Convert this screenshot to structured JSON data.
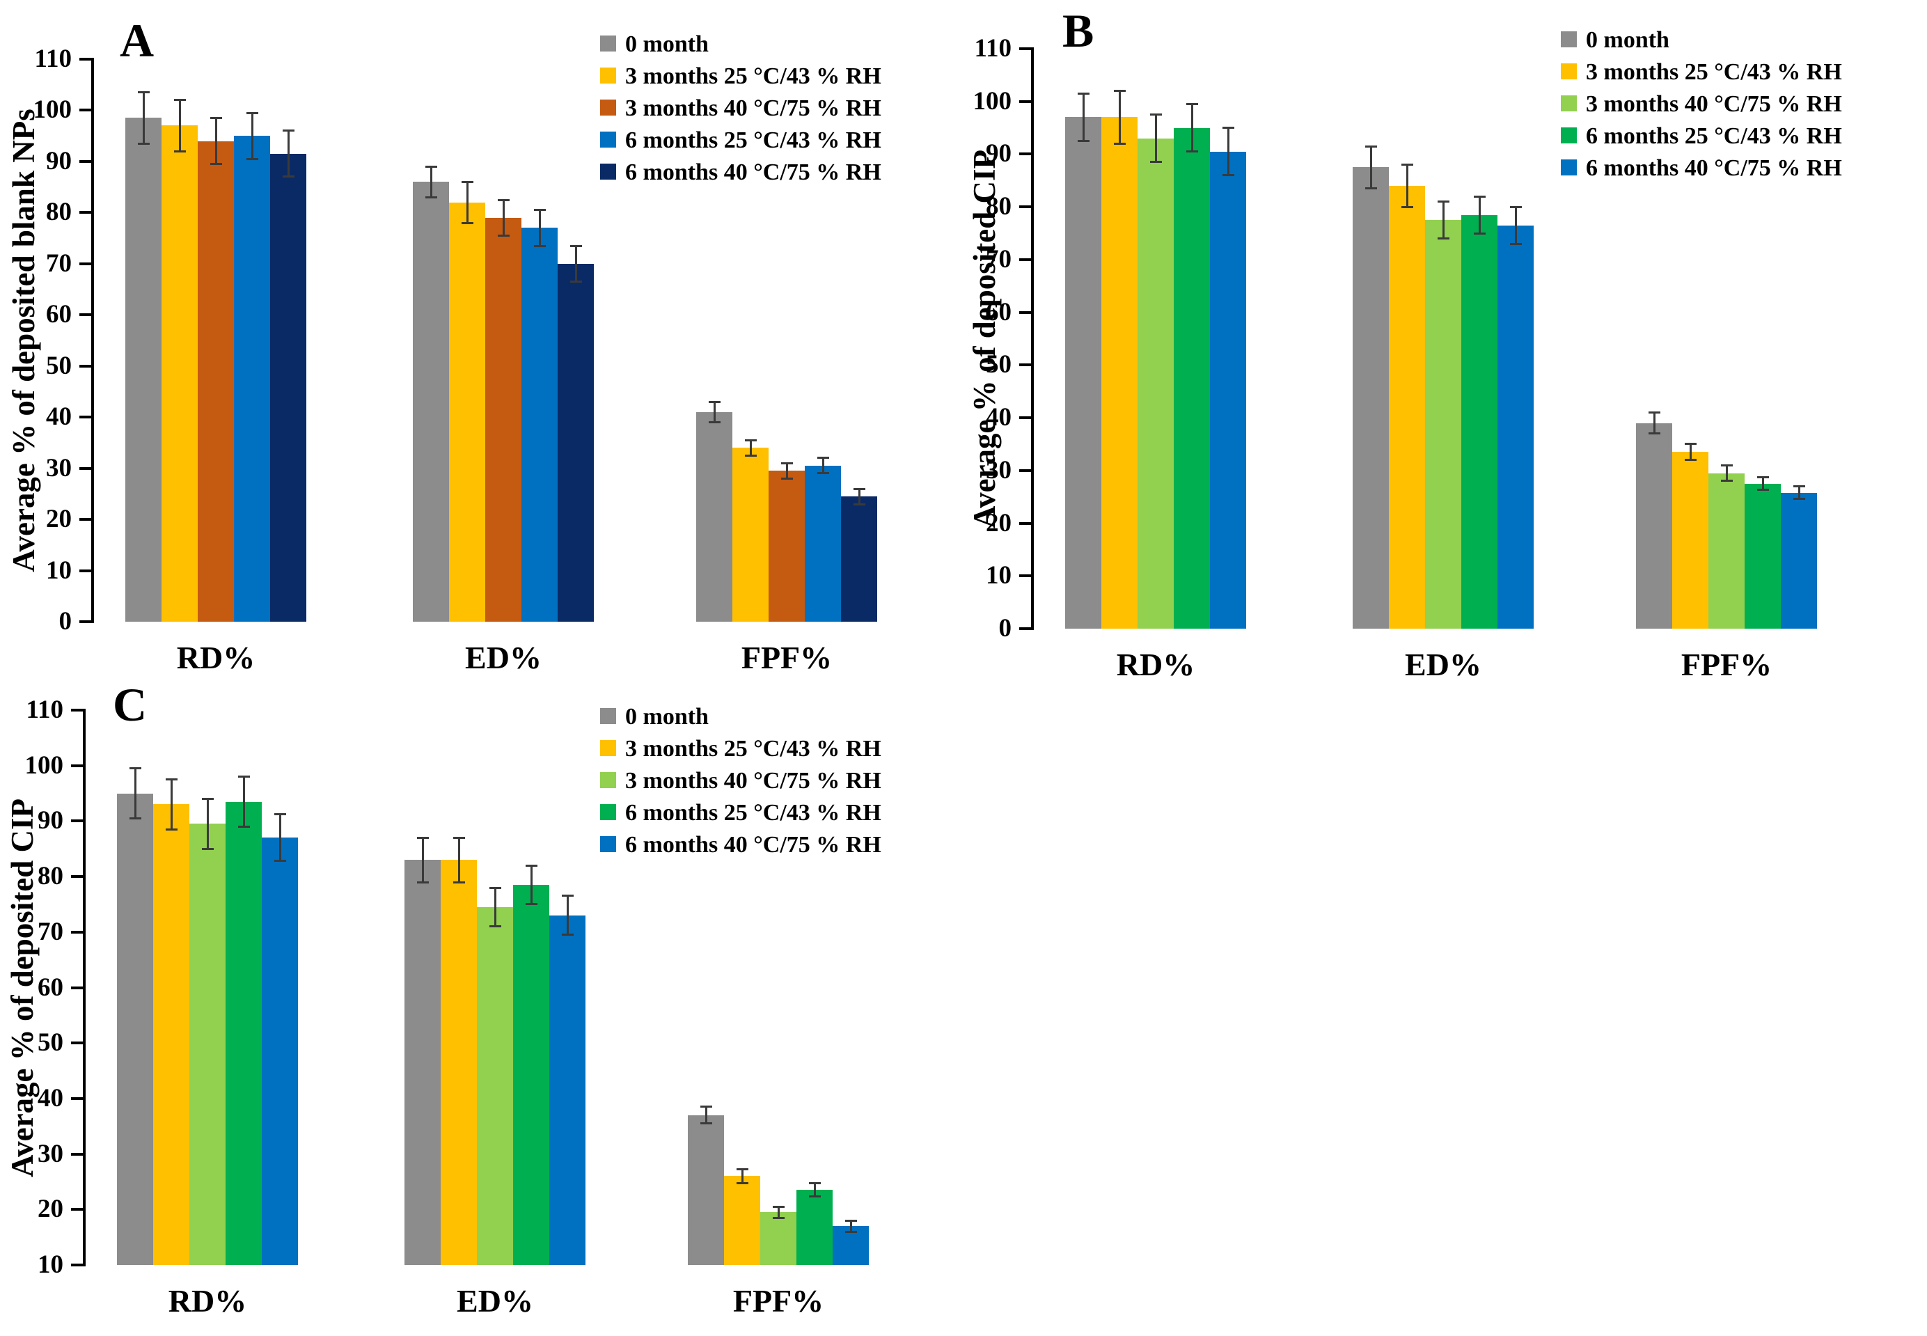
{
  "figure": {
    "background": "#FFFFFF",
    "axis_color": "#000000",
    "error_bar_color": "#3A3A3A"
  },
  "chart_data": [
    {
      "type": "bar",
      "panel_label": "A",
      "title": "",
      "ylabel": "Average % of deposited blank NPs",
      "xlabel": "",
      "categories": [
        "RD%",
        "ED%",
        "FPF%"
      ],
      "ylim": [
        0,
        110
      ],
      "ytick_step": 10,
      "grid": false,
      "legend_position": "top-right-inside",
      "error_bars": true,
      "series": [
        {
          "name": "0 month",
          "color": "#8C8C8C",
          "values": [
            98.5,
            86,
            41
          ],
          "errors": [
            5,
            3,
            2
          ]
        },
        {
          "name": "3 months 25 °C/43 % RH",
          "color": "#FFC000",
          "values": [
            97,
            82,
            34
          ],
          "errors": [
            5,
            4,
            1.5
          ]
        },
        {
          "name": "3 months 40 °C/75 % RH",
          "color": "#C55A11",
          "values": [
            94,
            79,
            29.5
          ],
          "errors": [
            4.5,
            3.5,
            1.5
          ]
        },
        {
          "name": "6 months 25 °C/43 % RH",
          "color": "#0070C0",
          "values": [
            95,
            77,
            30.5
          ],
          "errors": [
            4.5,
            3.5,
            1.5
          ]
        },
        {
          "name": "6 months 40 °C/75 % RH",
          "color": "#0A2A66",
          "values": [
            91.5,
            70,
            24.5
          ],
          "errors": [
            4.5,
            3.5,
            1.5
          ]
        }
      ]
    },
    {
      "type": "bar",
      "panel_label": "B",
      "title": "",
      "ylabel": "Average % of deposited CIP",
      "xlabel": "",
      "categories": [
        "RD%",
        "ED%",
        "FPF%"
      ],
      "ylim": [
        0,
        110
      ],
      "ytick_step": 10,
      "grid": false,
      "legend_position": "top-right-inside",
      "error_bars": true,
      "series": [
        {
          "name": "0 month",
          "color": "#8C8C8C",
          "values": [
            97,
            87.5,
            39
          ],
          "errors": [
            4.5,
            4,
            2
          ]
        },
        {
          "name": "3 months 25 °C/43 % RH",
          "color": "#FFC000",
          "values": [
            97,
            84,
            33.5
          ],
          "errors": [
            5,
            4,
            1.5
          ]
        },
        {
          "name": "3 months 40 °C/75 % RH",
          "color": "#92D050",
          "values": [
            93,
            77.5,
            29.5
          ],
          "errors": [
            4.5,
            3.5,
            1.5
          ]
        },
        {
          "name": "6 months 25 °C/43 % RH",
          "color": "#00B050",
          "values": [
            95,
            78.5,
            27.5
          ],
          "errors": [
            4.5,
            3.5,
            1.2
          ]
        },
        {
          "name": "6 months 40 °C/75 % RH",
          "color": "#0070C0",
          "values": [
            90.5,
            76.5,
            25.8
          ],
          "errors": [
            4.5,
            3.5,
            1.2
          ]
        }
      ]
    },
    {
      "type": "bar",
      "panel_label": "C",
      "title": "",
      "ylabel": "Average % of deposited CIP",
      "xlabel": "",
      "categories": [
        "RD%",
        "ED%",
        "FPF%"
      ],
      "ylim": [
        10,
        110
      ],
      "ytick_step": 10,
      "grid": false,
      "legend_position": "top-right-inside",
      "error_bars": true,
      "series": [
        {
          "name": "0 month",
          "color": "#8C8C8C",
          "values": [
            95,
            83,
            37
          ],
          "errors": [
            4.5,
            4,
            1.5
          ]
        },
        {
          "name": "3 months 25 °C/43 % RH",
          "color": "#FFC000",
          "values": [
            93,
            83,
            26
          ],
          "errors": [
            4.5,
            4,
            1.2
          ]
        },
        {
          "name": "3 months 40 °C/75 % RH",
          "color": "#92D050",
          "values": [
            89.5,
            74.5,
            19.5
          ],
          "errors": [
            4.5,
            3.5,
            1
          ]
        },
        {
          "name": "6 months 25 °C/43 % RH",
          "color": "#00B050",
          "values": [
            93.5,
            78.5,
            23.5
          ],
          "errors": [
            4.5,
            3.5,
            1.2
          ]
        },
        {
          "name": "6 months 40 °C/75 % RH",
          "color": "#0070C0",
          "values": [
            87,
            73,
            17
          ],
          "errors": [
            4.2,
            3.5,
            1
          ]
        }
      ]
    }
  ]
}
